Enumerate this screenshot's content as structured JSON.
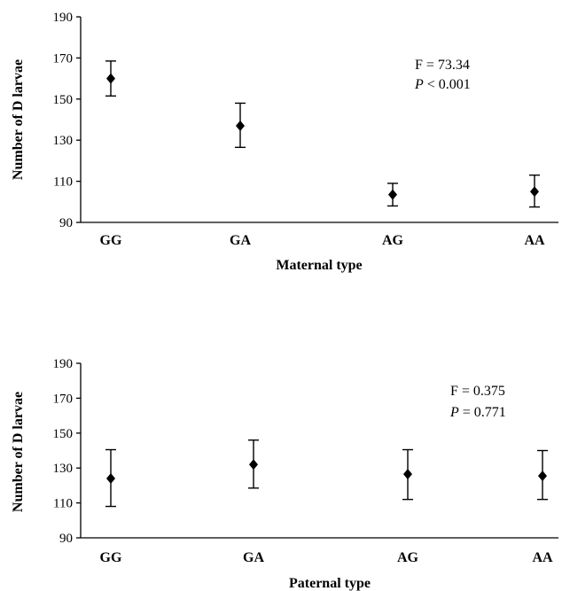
{
  "chart_data": [
    {
      "type": "scatter",
      "title": "",
      "xlabel": "Maternal type",
      "ylabel": "Number of D larvae",
      "categories": [
        "GG",
        "GA",
        "AG",
        "AA"
      ],
      "y_ticks": [
        "90",
        "110",
        "130",
        "150",
        "170",
        "190"
      ],
      "ylim": [
        90,
        190
      ],
      "values": [
        160,
        137,
        103.5,
        105
      ],
      "error_low": [
        151.5,
        126.5,
        98,
        97.5
      ],
      "error_high": [
        168.5,
        148,
        109,
        113
      ],
      "stats": {
        "f_text": "F = 73.34",
        "p_symbol": "P",
        "p_text": " < 0.001"
      },
      "grid": false,
      "legend": "none"
    },
    {
      "type": "scatter",
      "title": "",
      "xlabel": "Paternal type",
      "ylabel": "Number of D larvae",
      "categories": [
        "GG",
        "GA",
        "AG",
        "AA"
      ],
      "y_ticks": [
        "90",
        "110",
        "130",
        "150",
        "170",
        "190"
      ],
      "ylim": [
        90,
        190
      ],
      "values": [
        124,
        132,
        126.5,
        125.5
      ],
      "error_low": [
        108,
        118.5,
        112,
        112
      ],
      "error_high": [
        140.5,
        146,
        140.5,
        140
      ],
      "stats": {
        "f_text": "F = 0.375",
        "p_symbol": "P",
        "p_text": " = 0.771"
      },
      "grid": false,
      "legend": "none"
    }
  ]
}
